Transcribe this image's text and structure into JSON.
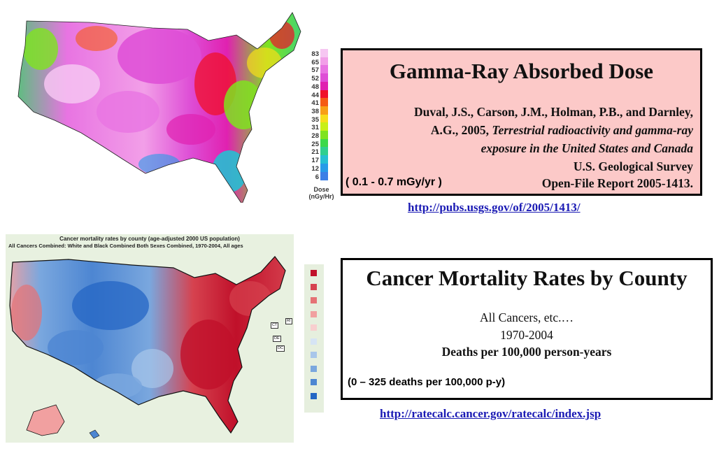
{
  "gamma": {
    "legend_values": [
      "83",
      "65",
      "57",
      "52",
      "48",
      "44",
      "41",
      "38",
      "35",
      "31",
      "28",
      "25",
      "21",
      "17",
      "12",
      "6"
    ],
    "legend_unit_line1": "Dose",
    "legend_unit_line2": "(nGy/Hr)",
    "legend_colors": [
      "#f6c6f2",
      "#f29fe8",
      "#e874e2",
      "#de4ed6",
      "#e021b0",
      "#f0102a",
      "#f55a14",
      "#f89f16",
      "#f7dd1b",
      "#c8ef17",
      "#7fe31f",
      "#3bd94a",
      "#2fcf8f",
      "#26bfd2",
      "#279be8",
      "#3c7fe6"
    ],
    "box_title": "Gamma-Ray Absorbed Dose",
    "citation_line1": "Duval, J.S., Carson, J.M., Holman, P.B., and Darnley,",
    "citation_line2_plain": "A.G., 2005, ",
    "citation_line2_italic": "Terrestrial radioactivity and gamma-ray",
    "citation_line3_italic": "exposure in the United States and Canada",
    "citation_line4": "U.S. Geological Survey",
    "citation_line5": "Open-File Report 2005-1413.",
    "range": "( 0.1 - 0.7 mGy/yr )",
    "url": "http://pubs.usgs.gov/of/2005/1413/"
  },
  "cancer": {
    "map_title": "Cancer mortality rates by county (age-adjusted 2000 US population)",
    "map_subtitle": "All Cancers Combined:  White and Black Combined Both Sexes Combined, 1970-2004, All ages",
    "state_tags": [
      "RI",
      "CT",
      "DE",
      "DC"
    ],
    "legend_colors": [
      "#c0102a",
      "#d6424f",
      "#e57275",
      "#f1a0a0",
      "#f8cfcf",
      "#d6e4f4",
      "#a8c6ea",
      "#7aa7de",
      "#4d86d2",
      "#2466c4"
    ],
    "box_title": "Cancer Mortality Rates by County",
    "line1": "All Cancers, etc.…",
    "line2": "1970-2004",
    "line3": "Deaths per 100,000 person-years",
    "range": "(0 – 325 deaths per 100,000 p-y)",
    "url": "http://ratecalc.cancer.gov/ratecalc/index.jsp"
  }
}
